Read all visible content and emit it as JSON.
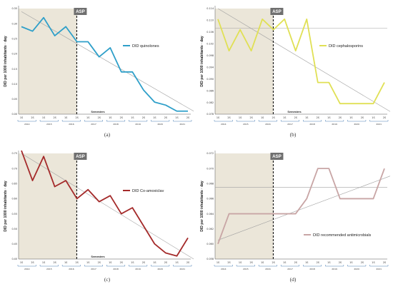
{
  "chart_data": [
    {
      "type": "line",
      "panel_label": "(a)",
      "ylabel": "DID per 1000 inhabitants · day",
      "xlabel": "Semesters",
      "marker_text": "ASP",
      "ylim": [
        0.0,
        0.35
      ],
      "yticks": [
        "0.00",
        "0.05",
        "0.10",
        "0.15",
        "0.20",
        "0.25",
        "0.30",
        "0.35"
      ],
      "semesters": [
        "1S",
        "2S",
        "1S",
        "2S",
        "1S",
        "2S",
        "1S",
        "2S",
        "1S",
        "2S",
        "1S",
        "2S",
        "1S",
        "2S",
        "1S",
        "2S"
      ],
      "years": [
        "2014",
        "2015",
        "2016",
        "2017",
        "2018",
        "2019",
        "2020",
        "2021"
      ],
      "series": [
        {
          "name": "DID quinolones",
          "color": "#2e9fc9",
          "values": [
            0.29,
            0.275,
            0.32,
            0.26,
            0.29,
            0.24,
            0.24,
            0.19,
            0.22,
            0.14,
            0.14,
            0.08,
            0.04,
            0.03,
            0.01,
            0.01
          ]
        }
      ],
      "trend": [
        0.34,
        0.01
      ],
      "trend_color": "#a0a0a0",
      "asp_after_index": 5
    },
    {
      "type": "line",
      "panel_label": "(b)",
      "ylabel": "DID per 1000 inhabitants · day",
      "xlabel": "Semesters",
      "marker_text": "ASP",
      "ylim": [
        0.076,
        0.116
      ],
      "yticks": [
        "0.078",
        "0.082",
        "0.086",
        "0.090",
        "0.094",
        "0.098",
        "0.102",
        "0.106",
        "0.110",
        "0.114"
      ],
      "semesters": [
        "1S",
        "2S",
        "1S",
        "2S",
        "1S",
        "2S",
        "1S",
        "2S",
        "1S",
        "2S",
        "1S",
        "2S",
        "1S",
        "2S",
        "1S",
        "2S"
      ],
      "years": [
        "2014",
        "2015",
        "2016",
        "2017",
        "2018",
        "2019",
        "2020",
        "2021"
      ],
      "series": [
        {
          "name": "DID cephalosporins",
          "color": "#e0e055",
          "values": [
            0.112,
            0.1,
            0.108,
            0.1,
            0.112,
            0.108,
            0.112,
            0.1,
            0.112,
            0.088,
            0.088,
            0.08,
            0.08,
            0.08,
            0.08,
            0.088
          ]
        }
      ],
      "trend": [
        0.116,
        0.077
      ],
      "flat": 0.1085,
      "trend_color": "#a0a0a0",
      "asp_after_index": 5
    },
    {
      "type": "line",
      "panel_label": "(c)",
      "ylabel": "DID per 1000 inhabitants · day",
      "xlabel": "Semesters",
      "marker_text": "ASP",
      "ylim": [
        0.4,
        0.75
      ],
      "yticks": [
        "0.40",
        "0.45",
        "0.50",
        "0.55",
        "0.60",
        "0.65",
        "0.70",
        "0.75"
      ],
      "semesters": [
        "1S",
        "2S",
        "1S",
        "2S",
        "1S",
        "2S",
        "1S",
        "2S",
        "1S",
        "2S",
        "1S",
        "2S",
        "1S",
        "2S",
        "1S",
        "2S"
      ],
      "years": [
        "2014",
        "2015",
        "2016",
        "2017",
        "2018",
        "2019",
        "2020",
        "2021"
      ],
      "series": [
        {
          "name": "DID Co-amoxiclav",
          "color": "#a42a2a",
          "values": [
            0.76,
            0.66,
            0.74,
            0.64,
            0.66,
            0.6,
            0.63,
            0.59,
            0.61,
            0.55,
            0.57,
            0.51,
            0.45,
            0.42,
            0.41,
            0.47
          ]
        }
      ],
      "trend": [
        0.75,
        0.4
      ],
      "trend_color": "#a0a0a0",
      "asp_after_index": 5
    },
    {
      "type": "line",
      "panel_label": "(d)",
      "ylabel": "DID per 1000 inhabitants · day",
      "xlabel": "",
      "marker_text": "ASP",
      "ylim": [
        0.058,
        0.072
      ],
      "yticks": [
        "0.058",
        "0.060",
        "0.062",
        "0.064",
        "0.066",
        "0.068",
        "0.070",
        "0.072"
      ],
      "semesters": [
        "1S",
        "2S",
        "1S",
        "2S",
        "1S",
        "2S",
        "1S",
        "2S",
        "1S",
        "2S",
        "1S",
        "2S",
        "1S",
        "2S",
        "1S",
        "2S"
      ],
      "years": [
        "2014",
        "2015",
        "2016",
        "2017",
        "2018",
        "2019",
        "2020",
        "2021"
      ],
      "series": [
        {
          "name": "DID recommended antimicrobials",
          "color": "#c8a5a5",
          "values": [
            0.06,
            0.064,
            0.064,
            0.064,
            0.064,
            0.064,
            0.064,
            0.064,
            0.066,
            0.07,
            0.07,
            0.066,
            0.066,
            0.066,
            0.066,
            0.07
          ]
        }
      ],
      "trend": [
        0.0605,
        0.069
      ],
      "flat": 0.0675,
      "trend_color": "#a0a0a0",
      "asp_after_index": 5
    }
  ]
}
